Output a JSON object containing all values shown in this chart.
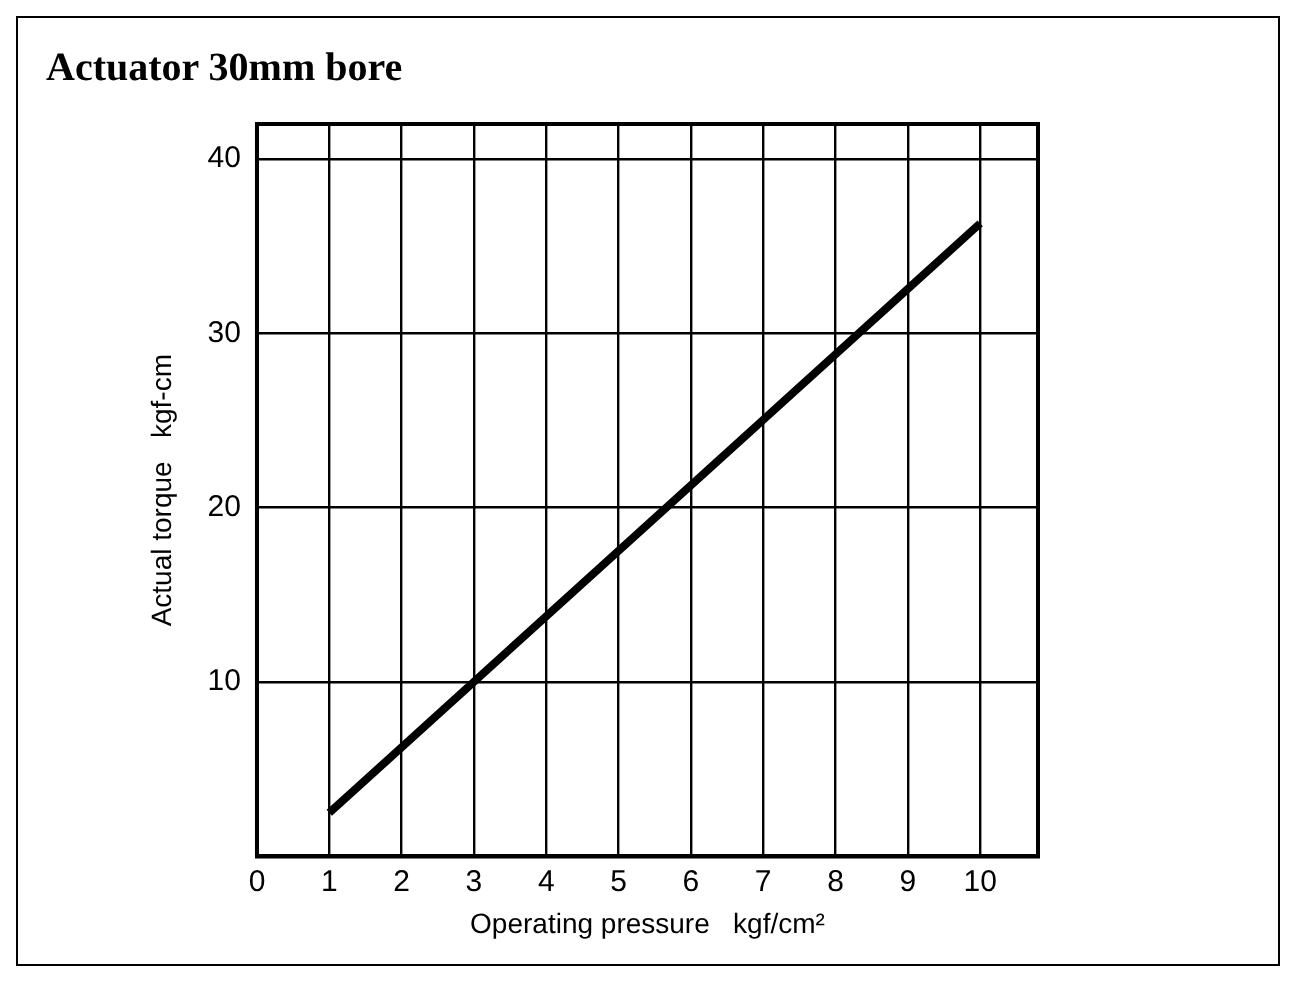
{
  "chart_data": {
    "type": "line",
    "title": "Actuator 30mm bore",
    "xlabel": "Operating pressure   kgf/cm²",
    "ylabel": "Actual torque   kgf-cm",
    "x": [
      1,
      10
    ],
    "series": [
      {
        "color": "#000000",
        "values": [
          2.5,
          36.3
        ]
      }
    ],
    "xlim": [
      0,
      10.8
    ],
    "xticks": [
      0,
      1,
      2,
      3,
      4,
      5,
      6,
      7,
      8,
      9,
      10
    ],
    "ylim": [
      0,
      42
    ],
    "yticks": [
      {
        "value": 0,
        "label": null
      },
      10,
      20,
      30,
      40
    ],
    "grid": true,
    "legend": false,
    "marker": "none",
    "line_style": "solid"
  }
}
